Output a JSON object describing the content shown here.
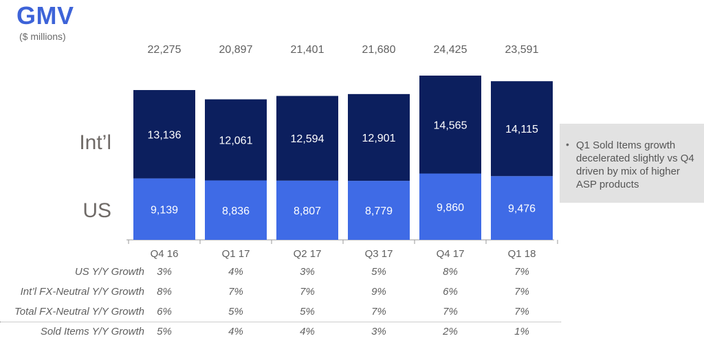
{
  "title": "GMV",
  "subtitle": "($ millions)",
  "segment_labels": {
    "intl": "Int’l",
    "us": "US"
  },
  "callout": {
    "bullet": "•",
    "text": "Q1 Sold Items growth decelerated slightly vs Q4 driven by mix of higher ASP products"
  },
  "colors": {
    "intl": "#0c1f5e",
    "us": "#3f6be6",
    "axis": "#9a9a9a",
    "label_light": "#ffffff"
  },
  "chart_data": {
    "type": "bar",
    "stacked": true,
    "categories": [
      "Q4 16",
      "Q1 17",
      "Q2 17",
      "Q3 17",
      "Q4 17",
      "Q1 18"
    ],
    "series": [
      {
        "name": "US",
        "values": [
          9139,
          8836,
          8807,
          8779,
          9860,
          9476
        ]
      },
      {
        "name": "Int’l",
        "values": [
          13136,
          12061,
          12594,
          12901,
          14565,
          14115
        ]
      }
    ],
    "totals": [
      22275,
      20897,
      21401,
      21680,
      24425,
      23591
    ],
    "value_labels": [
      "9,139",
      "8,836",
      "8,807",
      "8,779",
      "9,860",
      "9,476"
    ],
    "intl_labels": [
      "13,136",
      "12,061",
      "12,594",
      "12,901",
      "14,565",
      "14,115"
    ],
    "total_labels": [
      "22,275",
      "20,897",
      "21,401",
      "21,680",
      "24,425",
      "23,591"
    ],
    "ylim": [
      0,
      24425
    ],
    "grid": false,
    "legend": "left-side labels"
  },
  "growth_table": {
    "rows": [
      {
        "label": "US Y/Y Growth",
        "values": [
          "3%",
          "4%",
          "3%",
          "5%",
          "8%",
          "7%"
        ]
      },
      {
        "label": "Int’l FX-Neutral Y/Y Growth",
        "values": [
          "8%",
          "7%",
          "7%",
          "9%",
          "6%",
          "7%"
        ]
      },
      {
        "label": "Total FX-Neutral Y/Y Growth",
        "values": [
          "6%",
          "5%",
          "5%",
          "7%",
          "7%",
          "7%"
        ]
      },
      {
        "label": "Sold Items Y/Y Growth",
        "values": [
          "5%",
          "4%",
          "4%",
          "3%",
          "2%",
          "1%"
        ]
      }
    ]
  }
}
